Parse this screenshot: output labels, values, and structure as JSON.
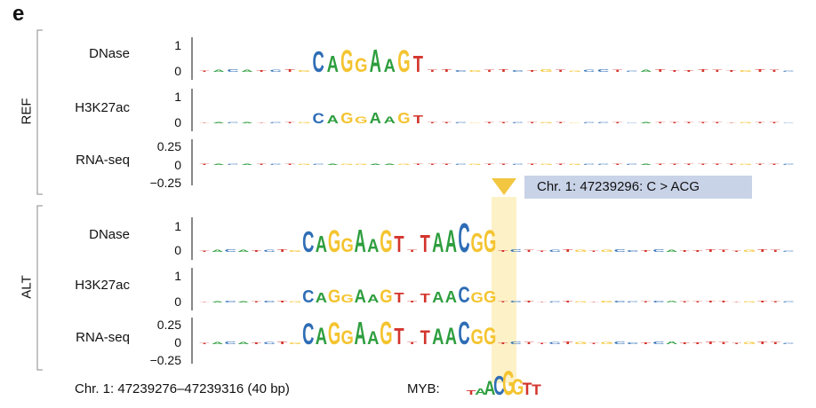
{
  "panel_label": "e",
  "colors": {
    "A": "#2e9e3e",
    "C": "#2e6db5",
    "G": "#f4c430",
    "T": "#d3352d",
    "highlight": "#fdf1c8",
    "arrow": "#f2c641",
    "box": "#c9d3e8",
    "axis": "#111111"
  },
  "groups": [
    {
      "label": "REF"
    },
    {
      "label": "ALT"
    }
  ],
  "tracks": [
    {
      "group": 0,
      "label": "DNase",
      "ticks": [
        "1",
        "0"
      ]
    },
    {
      "group": 0,
      "label": "H3K27ac",
      "ticks": [
        "1",
        "0"
      ]
    },
    {
      "group": 0,
      "label": "RNA-seq",
      "ticks": [
        "0.25",
        "0",
        "−0.25"
      ]
    },
    {
      "group": 1,
      "label": "DNase",
      "ticks": [
        "1",
        "0"
      ]
    },
    {
      "group": 1,
      "label": "H3K27ac",
      "ticks": [
        "1",
        "0"
      ]
    },
    {
      "group": 1,
      "label": "RNA-seq",
      "ticks": [
        "0.25",
        "0",
        "−0.25"
      ]
    }
  ],
  "variant": {
    "label": "Chr. 1: 47239296: C > ACG"
  },
  "region": {
    "label": "Chr. 1: 47239276–47239316 (40 bp)"
  },
  "motif": {
    "label": "MYB:"
  },
  "chart_data": {
    "type": "sequence-logo",
    "title": "",
    "x_unit": "bp",
    "sequence_ref": "TACATCTGCAGGAAGTTTCGTTCTGTGCCTCATTTTTTGTTC",
    "sequence_alt": "TACATCTGCAGGAAGTTTAACGGTCTTCTGTGCCTCATTTTTGTTC",
    "motif_sequence": "TAACGGTT",
    "series": [
      {
        "name": "REF DNase",
        "ylim": [
          -0.1,
          1.5
        ],
        "core_height": 1.0
      },
      {
        "name": "REF H3K27ac",
        "ylim": [
          -0.1,
          1.5
        ],
        "core_height": 0.5
      },
      {
        "name": "REF RNA-seq",
        "ylim": [
          -0.3,
          0.4
        ],
        "core_height": 0.02
      },
      {
        "name": "ALT DNase",
        "ylim": [
          -0.1,
          1.5
        ],
        "core_height": 1.0,
        "variant_height": 1.3
      },
      {
        "name": "ALT H3K27ac",
        "ylim": [
          -0.1,
          1.5
        ],
        "core_height": 0.6,
        "variant_height": 0.7
      },
      {
        "name": "ALT RNA-seq",
        "ylim": [
          -0.3,
          0.4
        ],
        "core_height": 0.35,
        "variant_height": 0.35
      }
    ]
  }
}
